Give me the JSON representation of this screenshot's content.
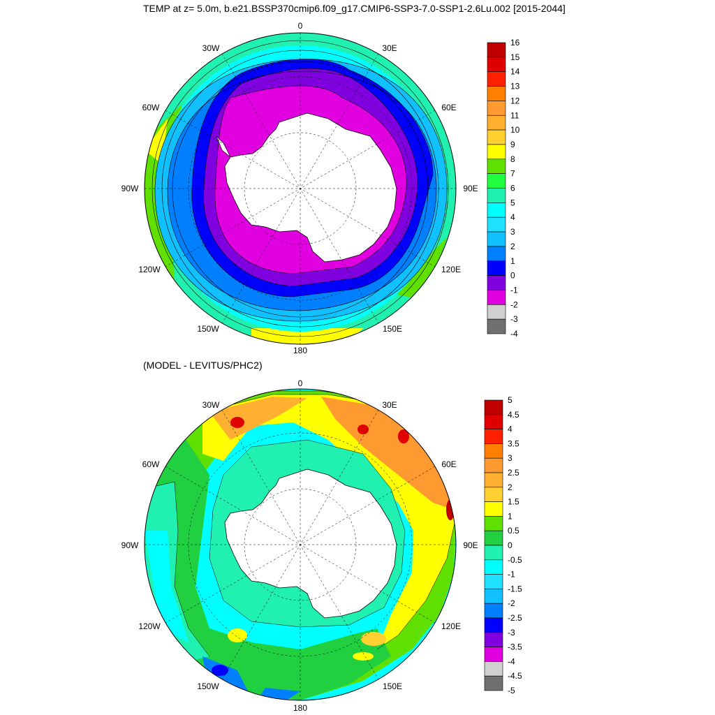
{
  "titles": {
    "main": "TEMP at z=   5.0m, b.e21.BSSP370cmip6.f09_g17.CMIP6-SSP3-7.0-SSP1-2.6Lu.002 [2015-2044]",
    "diff": "(MODEL - LEVITUS/PHC2)"
  },
  "longitude_labels": {
    "lon_0": "0",
    "lon_30e": "30E",
    "lon_60e": "60E",
    "lon_90e": "90E",
    "lon_120e": "120E",
    "lon_150e": "150E",
    "lon_180": "180",
    "lon_150w": "150W",
    "lon_120w": "120W",
    "lon_90w": "90W",
    "lon_60w": "60W",
    "lon_30w": "30W"
  },
  "colorbar_top": {
    "labels": [
      "16",
      "15",
      "14",
      "13",
      "12",
      "11",
      "10",
      "9",
      "8",
      "7",
      "6",
      "5",
      "4",
      "3",
      "2",
      "1",
      "0",
      "-1",
      "-2",
      "-3",
      "-4"
    ],
    "colors": [
      "#c00000",
      "#e00000",
      "#ff2000",
      "#ff8000",
      "#ff9a30",
      "#ffb030",
      "#ffd030",
      "#ffff00",
      "#60e000",
      "#20ff40",
      "#20f0b0",
      "#00ffff",
      "#20e0ff",
      "#10c0ff",
      "#0080ff",
      "#0000ff",
      "#8000e0",
      "#e000e0",
      "#d0d0d0",
      "#707070"
    ]
  },
  "colorbar_bottom": {
    "labels": [
      "5",
      "4.5",
      "4",
      "3.5",
      "3",
      "2.5",
      "2",
      "1.5",
      "1",
      "0.5",
      "0",
      "-0.5",
      "-1",
      "-1.5",
      "-2",
      "-2.5",
      "-3",
      "-3.5",
      "-4",
      "-4.5",
      "-5"
    ],
    "colors": [
      "#c00000",
      "#e00000",
      "#ff2000",
      "#ff8000",
      "#ff9a30",
      "#ffb030",
      "#ffd030",
      "#ffff00",
      "#60e000",
      "#20d040",
      "#20f0b0",
      "#00ffff",
      "#20e0ff",
      "#10c0ff",
      "#0080ff",
      "#0000ff",
      "#8000e0",
      "#e000e0",
      "#d0d0d0",
      "#707070"
    ]
  },
  "field_colors": {
    "land": "#ffffff",
    "coast": "#000000"
  }
}
